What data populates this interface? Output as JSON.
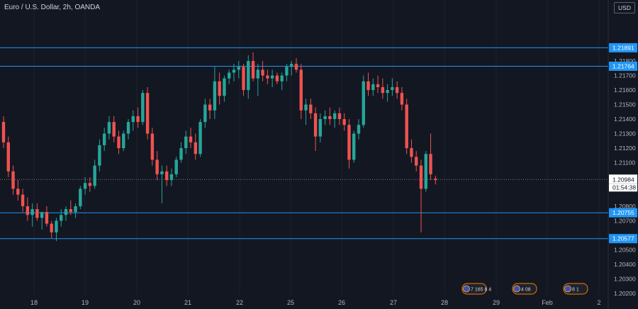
{
  "header": {
    "title": "Euro / U.S. Dollar, 2h, OANDA",
    "currency_label": "USD"
  },
  "colors": {
    "background": "#131722",
    "up": "#26a69a",
    "down": "#ef5350",
    "level_line": "#2962ff",
    "level_label": "#2196f3",
    "axis_text": "#b2b5be",
    "price_label_bg": "#ffffff"
  },
  "chart_data": {
    "type": "candlestick",
    "title": "Euro / U.S. Dollar, 2h, OANDA",
    "ylim": [
      1.2019,
      1.2222
    ],
    "y_ticks": [
      "1.21800",
      "1.21700",
      "1.21600",
      "1.21500",
      "1.21400",
      "1.21300",
      "1.21200",
      "1.21100",
      "1.20800",
      "1.20700",
      "1.20500",
      "1.20400",
      "1.20300",
      "1.20200"
    ],
    "x_ticks": [
      "18",
      "19",
      "20",
      "21",
      "22",
      "25",
      "26",
      "27",
      "28",
      "29",
      "Feb",
      "2"
    ],
    "horizontal_levels": [
      "1.21891",
      "1.21764",
      "1.20755",
      "1.20577"
    ],
    "last_price": "1.20984",
    "countdown": "01:54:38",
    "event_badges": [
      "7 165 8 4",
      "4 08",
      "8 1"
    ],
    "candles": [
      [
        1.2138,
        1.2142,
        1.212,
        1.2124
      ],
      [
        1.2124,
        1.2128,
        1.21,
        1.2104
      ],
      [
        1.2104,
        1.2108,
        1.2088,
        1.2092
      ],
      [
        1.2092,
        1.2098,
        1.2084,
        1.2088
      ],
      [
        1.2088,
        1.2092,
        1.2076,
        1.208
      ],
      [
        1.208,
        1.2086,
        1.207,
        1.2074
      ],
      [
        1.2074,
        1.2082,
        1.2066,
        1.2078
      ],
      [
        1.2078,
        1.2082,
        1.207,
        1.2072
      ],
      [
        1.2072,
        1.2076,
        1.2064,
        1.2076
      ],
      [
        1.2076,
        1.208,
        1.2066,
        1.2068
      ],
      [
        1.2068,
        1.207,
        1.2058,
        1.2062
      ],
      [
        1.2062,
        1.2072,
        1.2056,
        1.207
      ],
      [
        1.207,
        1.2078,
        1.2066,
        1.2074
      ],
      [
        1.2074,
        1.208,
        1.207,
        1.2078
      ],
      [
        1.2078,
        1.2084,
        1.2074,
        1.2076
      ],
      [
        1.2076,
        1.2082,
        1.2072,
        1.208
      ],
      [
        1.208,
        1.2094,
        1.2078,
        1.2092
      ],
      [
        1.2092,
        1.21,
        1.2088,
        1.2096
      ],
      [
        1.2096,
        1.21,
        1.209,
        1.2094
      ],
      [
        1.2094,
        1.2112,
        1.2092,
        1.2108
      ],
      [
        1.2108,
        1.2126,
        1.2104,
        1.2122
      ],
      [
        1.2122,
        1.2134,
        1.2118,
        1.213
      ],
      [
        1.213,
        1.2142,
        1.2126,
        1.2138
      ],
      [
        1.2138,
        1.2142,
        1.2124,
        1.2128
      ],
      [
        1.2128,
        1.2132,
        1.2116,
        1.212
      ],
      [
        1.212,
        1.2132,
        1.2118,
        1.213
      ],
      [
        1.213,
        1.214,
        1.2126,
        1.2138
      ],
      [
        1.2138,
        1.2146,
        1.2132,
        1.2142
      ],
      [
        1.2142,
        1.2148,
        1.2134,
        1.2138
      ],
      [
        1.2138,
        1.216,
        1.2136,
        1.2158
      ],
      [
        1.2158,
        1.2162,
        1.2126,
        1.213
      ],
      [
        1.213,
        1.2134,
        1.2108,
        1.2112
      ],
      [
        1.2112,
        1.2118,
        1.2098,
        1.2102
      ],
      [
        1.2102,
        1.2108,
        1.2082,
        1.2104
      ],
      [
        1.2104,
        1.2108,
        1.2094,
        1.2098
      ],
      [
        1.2098,
        1.2106,
        1.2094,
        1.2102
      ],
      [
        1.2102,
        1.2114,
        1.21,
        1.2112
      ],
      [
        1.2112,
        1.2124,
        1.211,
        1.212
      ],
      [
        1.212,
        1.2132,
        1.2116,
        1.2128
      ],
      [
        1.2128,
        1.2134,
        1.212,
        1.2124
      ],
      [
        1.2124,
        1.213,
        1.2112,
        1.2116
      ],
      [
        1.2116,
        1.214,
        1.2114,
        1.2138
      ],
      [
        1.2138,
        1.2154,
        1.2134,
        1.215
      ],
      [
        1.215,
        1.2154,
        1.214,
        1.2146
      ],
      [
        1.2146,
        1.2176,
        1.214,
        1.2166
      ],
      [
        1.2166,
        1.2172,
        1.215,
        1.2156
      ],
      [
        1.2156,
        1.217,
        1.2152,
        1.2168
      ],
      [
        1.2168,
        1.2174,
        1.2164,
        1.2172
      ],
      [
        1.2172,
        1.2178,
        1.2166,
        1.2174
      ],
      [
        1.2174,
        1.218,
        1.2168,
        1.2176
      ],
      [
        1.2176,
        1.2178,
        1.2156,
        1.216
      ],
      [
        1.216,
        1.2184,
        1.2154,
        1.218
      ],
      [
        1.218,
        1.2186,
        1.2166,
        1.2168
      ],
      [
        1.2168,
        1.2178,
        1.2156,
        1.2174
      ],
      [
        1.2174,
        1.218,
        1.2166,
        1.217
      ],
      [
        1.217,
        1.2174,
        1.2164,
        1.2168
      ],
      [
        1.2168,
        1.2174,
        1.2162,
        1.217
      ],
      [
        1.217,
        1.2172,
        1.2164,
        1.2166
      ],
      [
        1.2166,
        1.2172,
        1.216,
        1.217
      ],
      [
        1.217,
        1.2178,
        1.2166,
        1.2176
      ],
      [
        1.2176,
        1.218,
        1.217,
        1.2178
      ],
      [
        1.2178,
        1.2182,
        1.2172,
        1.2174
      ],
      [
        1.2174,
        1.2178,
        1.214,
        1.2146
      ],
      [
        1.2146,
        1.2154,
        1.2136,
        1.215
      ],
      [
        1.215,
        1.2154,
        1.214,
        1.2144
      ],
      [
        1.2144,
        1.2148,
        1.2118,
        1.2128
      ],
      [
        1.2128,
        1.2144,
        1.2124,
        1.214
      ],
      [
        1.214,
        1.2146,
        1.2136,
        1.2142
      ],
      [
        1.2142,
        1.2148,
        1.2136,
        1.214
      ],
      [
        1.214,
        1.2146,
        1.2134,
        1.2144
      ],
      [
        1.2144,
        1.2148,
        1.2136,
        1.214
      ],
      [
        1.214,
        1.2144,
        1.2132,
        1.2136
      ],
      [
        1.2136,
        1.214,
        1.2106,
        1.2112
      ],
      [
        1.2112,
        1.2132,
        1.211,
        1.213
      ],
      [
        1.213,
        1.214,
        1.2126,
        1.2136
      ],
      [
        1.2136,
        1.217,
        1.2134,
        1.2166
      ],
      [
        1.2166,
        1.2172,
        1.2156,
        1.216
      ],
      [
        1.216,
        1.2168,
        1.2156,
        1.2164
      ],
      [
        1.2164,
        1.217,
        1.2158,
        1.2162
      ],
      [
        1.2162,
        1.2168,
        1.2154,
        1.2158
      ],
      [
        1.2158,
        1.2164,
        1.2152,
        1.216
      ],
      [
        1.216,
        1.2168,
        1.2156,
        1.2162
      ],
      [
        1.2162,
        1.2166,
        1.2154,
        1.2158
      ],
      [
        1.2158,
        1.2162,
        1.2146,
        1.215
      ],
      [
        1.215,
        1.2154,
        1.2116,
        1.212
      ],
      [
        1.212,
        1.2126,
        1.211,
        1.2114
      ],
      [
        1.2114,
        1.2118,
        1.2104,
        1.2108
      ],
      [
        1.2108,
        1.2112,
        1.2062,
        1.2092
      ],
      [
        1.2092,
        1.2118,
        1.209,
        1.2116
      ],
      [
        1.2116,
        1.213,
        1.2098,
        1.2102
      ],
      [
        1.2099,
        1.2101,
        1.2095,
        1.2098
      ]
    ]
  }
}
